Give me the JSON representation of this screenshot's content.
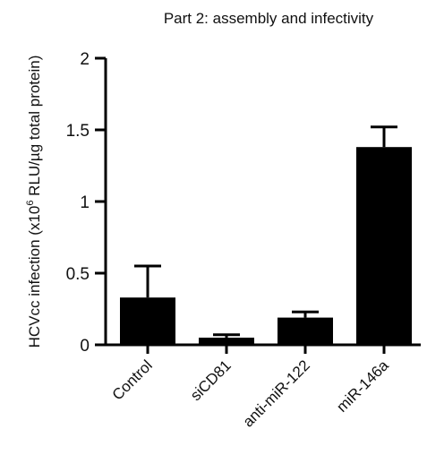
{
  "chart_data": {
    "type": "bar",
    "title": "Part 2: assembly and infectivity",
    "ylabel_prefix": "HCVcc infection (x10",
    "ylabel_superscript": "6",
    "ylabel_suffix": " RLU/µg total protein)",
    "xlabel": "",
    "categories": [
      "Control",
      "siCD81",
      "anti-miR-122",
      "miR-146a"
    ],
    "series": [
      {
        "values": [
          0.33,
          0.05,
          0.19,
          1.38
        ],
        "error_upper": [
          0.22,
          0.02,
          0.04,
          0.14
        ]
      }
    ],
    "ylim": [
      0,
      2
    ],
    "yticks": [
      0,
      0.5,
      1,
      1.5,
      2
    ],
    "ytick_labels": [
      "0",
      "0.5",
      "1",
      "1.5",
      "2"
    ],
    "grid": false,
    "bar_color": "#000000"
  }
}
